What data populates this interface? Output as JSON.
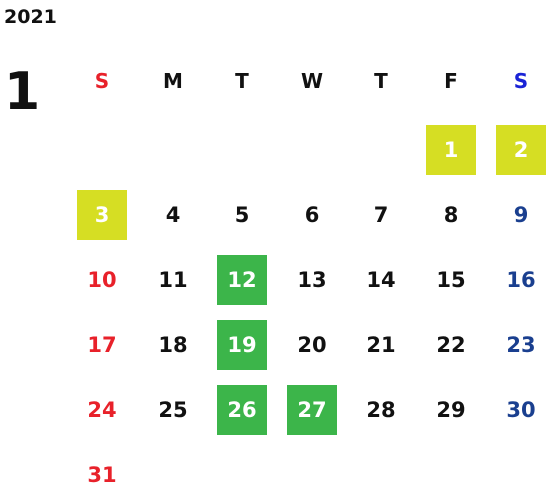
{
  "calendar": {
    "year": "2021",
    "month": "1",
    "weekdays": [
      "S",
      "M",
      "T",
      "W",
      "T",
      "F",
      "S"
    ],
    "colors": {
      "sunday": "#e8212a",
      "weekday": "#111111",
      "saturday": "#1a3f8f",
      "saturday_header": "#1a23d6",
      "holiday_yellow": "#d6de23",
      "holiday_green": "#3cb54a"
    },
    "weeks": [
      [
        {
          "d": ""
        },
        {
          "d": ""
        },
        {
          "d": ""
        },
        {
          "d": ""
        },
        {
          "d": ""
        },
        {
          "d": "1",
          "hl": "yellow"
        },
        {
          "d": "2",
          "hl": "yellow"
        }
      ],
      [
        {
          "d": "3",
          "hl": "yellow"
        },
        {
          "d": "4"
        },
        {
          "d": "5"
        },
        {
          "d": "6"
        },
        {
          "d": "7"
        },
        {
          "d": "8"
        },
        {
          "d": "9"
        }
      ],
      [
        {
          "d": "10"
        },
        {
          "d": "11"
        },
        {
          "d": "12",
          "hl": "green"
        },
        {
          "d": "13"
        },
        {
          "d": "14"
        },
        {
          "d": "15"
        },
        {
          "d": "16"
        }
      ],
      [
        {
          "d": "17"
        },
        {
          "d": "18"
        },
        {
          "d": "19",
          "hl": "green"
        },
        {
          "d": "20"
        },
        {
          "d": "21"
        },
        {
          "d": "22"
        },
        {
          "d": "23"
        }
      ],
      [
        {
          "d": "24"
        },
        {
          "d": "25"
        },
        {
          "d": "26",
          "hl": "green"
        },
        {
          "d": "27",
          "hl": "green"
        },
        {
          "d": "28"
        },
        {
          "d": "29"
        },
        {
          "d": "30"
        }
      ],
      [
        {
          "d": "31"
        },
        {
          "d": ""
        },
        {
          "d": ""
        },
        {
          "d": ""
        },
        {
          "d": ""
        },
        {
          "d": ""
        },
        {
          "d": ""
        }
      ]
    ]
  }
}
